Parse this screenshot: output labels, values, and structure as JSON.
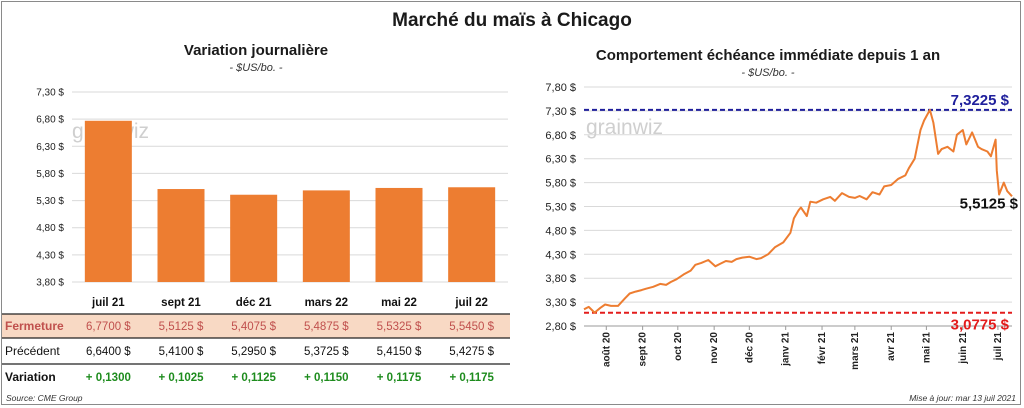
{
  "title": "Marché du maïs à Chicago",
  "left": {
    "subtitle": "Variation  journalière",
    "unit": "- $US/bo. -",
    "watermark": "grainwiz",
    "table": {
      "row_labels": [
        "Fermeture",
        "Précédent",
        "Variation"
      ],
      "fermeture": [
        "6,7700 $",
        "5,5125 $",
        "5,4075 $",
        "5,4875 $",
        "5,5325 $",
        "5,5450 $"
      ],
      "precedent": [
        "6,6400 $",
        "5,4100 $",
        "5,2950 $",
        "5,3725 $",
        "5,4150 $",
        "5,4275 $"
      ],
      "variation": [
        "+ 0,1300",
        "+ 0,1025",
        "+ 0,1125",
        "+ 0,1150",
        "+ 0,1175",
        "+ 0,1175"
      ]
    }
  },
  "right": {
    "subtitle": "Comportement  échéance immédiate depuis 1 an",
    "unit": "- $US/bo. -",
    "watermark": "grainwiz",
    "max_label": "7,3225 $",
    "min_label": "3,0775 $",
    "last_label": "5,5125 $"
  },
  "source": "Source: CME Group",
  "updated": "Mise à jour: mar 13 juil 2021",
  "colors": {
    "bar": "#ED7D31",
    "line": "#ED7D31",
    "max_line": "#1F1F9C",
    "min_line": "#E31C1C",
    "fermeture_bg": "#F8D9C4",
    "fermeture_text": "#C0504D",
    "variation_text": "#1E8C1E"
  },
  "chart_data": [
    {
      "type": "bar",
      "categories": [
        "juil 21",
        "sept 21",
        "déc 21",
        "mars 22",
        "mai 22",
        "juil 22"
      ],
      "values": [
        6.77,
        5.5125,
        5.4075,
        5.4875,
        5.5325,
        5.545
      ],
      "ylim": [
        3.8,
        7.3
      ],
      "yticks": [
        3.8,
        4.3,
        4.8,
        5.3,
        5.8,
        6.3,
        6.8,
        7.3
      ],
      "ytick_labels": [
        "3,80 $",
        "4,30 $",
        "4,80 $",
        "5,30 $",
        "5,80 $",
        "6,30 $",
        "6,80 $",
        "7,30 $"
      ],
      "grid": true
    },
    {
      "type": "line",
      "x": [
        "2020-07-13",
        "2020-07-17",
        "2020-07-22",
        "2020-07-27",
        "2020-07-31",
        "2020-08-05",
        "2020-08-11",
        "2020-08-17",
        "2020-08-21",
        "2020-08-26",
        "2020-08-31",
        "2020-09-04",
        "2020-09-10",
        "2020-09-16",
        "2020-09-21",
        "2020-09-25",
        "2020-09-30",
        "2020-10-06",
        "2020-10-12",
        "2020-10-16",
        "2020-10-21",
        "2020-10-27",
        "2020-11-02",
        "2020-11-06",
        "2020-11-11",
        "2020-11-16",
        "2020-11-20",
        "2020-11-25",
        "2020-12-01",
        "2020-12-07",
        "2020-12-11",
        "2020-12-17",
        "2020-12-23",
        "2020-12-30",
        "2021-01-05",
        "2021-01-08",
        "2021-01-12",
        "2021-01-14",
        "2021-01-19",
        "2021-01-22",
        "2021-01-27",
        "2021-02-02",
        "2021-02-08",
        "2021-02-12",
        "2021-02-18",
        "2021-02-24",
        "2021-03-01",
        "2021-03-05",
        "2021-03-11",
        "2021-03-16",
        "2021-03-22",
        "2021-03-26",
        "2021-04-01",
        "2021-04-07",
        "2021-04-13",
        "2021-04-16",
        "2021-04-21",
        "2021-04-26",
        "2021-04-29",
        "2021-05-04",
        "2021-05-07",
        "2021-05-11",
        "2021-05-14",
        "2021-05-19",
        "2021-05-24",
        "2021-05-27",
        "2021-06-01",
        "2021-06-04",
        "2021-06-09",
        "2021-06-14",
        "2021-06-17",
        "2021-06-22",
        "2021-06-25",
        "2021-06-29",
        "2021-06-30",
        "2021-07-02",
        "2021-07-06",
        "2021-07-09",
        "2021-07-13"
      ],
      "y": [
        3.15,
        3.2,
        3.08,
        3.18,
        3.25,
        3.22,
        3.22,
        3.38,
        3.48,
        3.52,
        3.55,
        3.58,
        3.62,
        3.68,
        3.66,
        3.72,
        3.78,
        3.88,
        3.96,
        4.08,
        4.12,
        4.18,
        4.05,
        4.1,
        4.16,
        4.14,
        4.2,
        4.23,
        4.25,
        4.2,
        4.22,
        4.3,
        4.45,
        4.55,
        4.75,
        5.05,
        5.22,
        5.28,
        5.1,
        5.4,
        5.38,
        5.45,
        5.5,
        5.42,
        5.58,
        5.5,
        5.48,
        5.52,
        5.45,
        5.6,
        5.55,
        5.72,
        5.75,
        5.88,
        5.95,
        6.1,
        6.3,
        6.9,
        7.1,
        7.32,
        7.05,
        6.4,
        6.5,
        6.55,
        6.45,
        6.8,
        6.9,
        6.6,
        6.85,
        6.55,
        6.5,
        6.45,
        6.35,
        6.7,
        6.05,
        5.55,
        5.8,
        5.62,
        5.5125
      ],
      "ylim": [
        2.8,
        7.8
      ],
      "yticks": [
        2.8,
        3.3,
        3.8,
        4.3,
        4.8,
        5.3,
        5.8,
        6.3,
        6.8,
        7.3,
        7.8
      ],
      "ytick_labels": [
        "2,80 $",
        "3,30 $",
        "3,80 $",
        "4,30 $",
        "4,80 $",
        "5,30 $",
        "5,80 $",
        "6,30 $",
        "6,80 $",
        "7,30 $",
        "7,80 $"
      ],
      "xtick_labels": [
        "août 20",
        "sept 20",
        "oct 20",
        "nov 20",
        "déc 20",
        "janv 21",
        "févr 21",
        "mars 21",
        "avr 21",
        "mai 21",
        "juin 21",
        "juil 21"
      ],
      "reference_lines": [
        {
          "label": "max",
          "value": 7.3225
        },
        {
          "label": "min",
          "value": 3.0775
        }
      ],
      "grid": true
    }
  ]
}
